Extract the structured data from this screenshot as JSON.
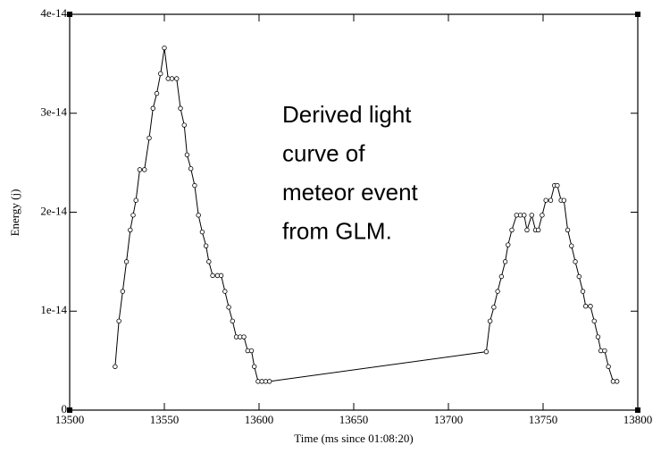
{
  "chart_data": {
    "type": "line",
    "x_label": "Time (ms since 01:08:20)",
    "y_label": "Energy (j)",
    "annotation": [
      "Derived light",
      "curve of",
      "meteor event",
      "from GLM."
    ],
    "xlim": [
      13500,
      13800
    ],
    "xticks": [
      13500,
      13550,
      13600,
      13650,
      13700,
      13750,
      13800
    ],
    "ylim": [
      0,
      4e-14
    ],
    "yticks": [
      0,
      1e-14,
      2e-14,
      3e-14,
      4e-14
    ],
    "series": [
      {
        "color": "#000000",
        "x": [
          13524,
          13526,
          13528,
          13530,
          13532,
          13533.5,
          13535,
          13537,
          13539.5,
          13542,
          13544,
          13546,
          13548,
          13550,
          13552,
          13554,
          13556.5,
          13558.5,
          13560.5,
          13562,
          13564,
          13566,
          13568,
          13570,
          13572,
          13573.5,
          13575.5,
          13578,
          13580,
          13582,
          13584,
          13586,
          13588,
          13590,
          13592,
          13594,
          13596,
          13597.5,
          13599.5,
          13601.5,
          13603.5,
          13605.5,
          13720,
          13722,
          13724,
          13726,
          13728,
          13730,
          13731.5,
          13733.5,
          13736,
          13738,
          13740,
          13741.5,
          13744,
          13746,
          13747.5,
          13749.5,
          13751.5,
          13754,
          13756,
          13757.5,
          13759.5,
          13761,
          13763,
          13765,
          13767,
          13769,
          13771,
          13772.5,
          13775,
          13777,
          13779,
          13780.5,
          13782.5,
          13784.5,
          13787,
          13789
        ],
        "values": [
          4.4e-15,
          9e-15,
          1.2e-14,
          1.5e-14,
          1.82e-14,
          1.97e-14,
          2.12e-14,
          2.43e-14,
          2.43e-14,
          2.75e-14,
          3.05e-14,
          3.2e-14,
          3.4e-14,
          3.66e-14,
          3.35e-14,
          3.35e-14,
          3.35e-14,
          3.05e-14,
          2.88e-14,
          2.58e-14,
          2.44e-14,
          2.27e-14,
          1.97e-14,
          1.8e-14,
          1.66e-14,
          1.5e-14,
          1.36e-14,
          1.36e-14,
          1.36e-14,
          1.2e-14,
          1.04e-14,
          9e-15,
          7.4e-15,
          7.4e-15,
          7.4e-15,
          6e-15,
          6e-15,
          4.4e-15,
          2.9e-15,
          2.9e-15,
          2.9e-15,
          2.9e-15,
          5.9e-15,
          9e-15,
          1.04e-14,
          1.2e-14,
          1.35e-14,
          1.5e-14,
          1.67e-14,
          1.82e-14,
          1.97e-14,
          1.97e-14,
          1.97e-14,
          1.82e-14,
          1.97e-14,
          1.82e-14,
          1.82e-14,
          1.97e-14,
          2.12e-14,
          2.12e-14,
          2.27e-14,
          2.27e-14,
          2.12e-14,
          2.12e-14,
          1.82e-14,
          1.66e-14,
          1.5e-14,
          1.35e-14,
          1.2e-14,
          1.05e-14,
          1.05e-14,
          9e-15,
          7.4e-15,
          6e-15,
          6e-15,
          4.4e-15,
          2.9e-15,
          2.9e-15
        ]
      }
    ]
  }
}
